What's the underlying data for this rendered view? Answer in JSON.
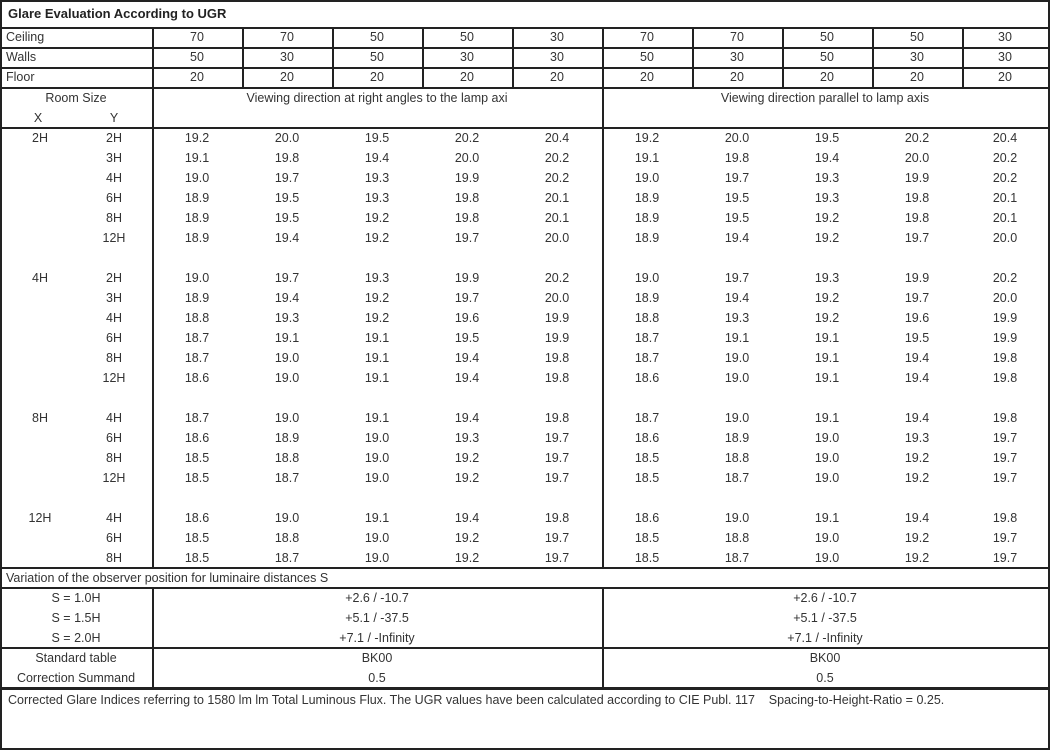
{
  "title": "Glare Evaluation According to UGR",
  "reflectances": [
    {
      "label": "Ceiling",
      "values": [
        "70",
        "70",
        "50",
        "50",
        "30",
        "70",
        "70",
        "50",
        "50",
        "30"
      ]
    },
    {
      "label": "Walls",
      "values": [
        "50",
        "30",
        "50",
        "30",
        "30",
        "50",
        "30",
        "50",
        "30",
        "30"
      ]
    },
    {
      "label": "Floor",
      "values": [
        "20",
        "20",
        "20",
        "20",
        "20",
        "20",
        "20",
        "20",
        "20",
        "20"
      ]
    }
  ],
  "room_size_label": "Room Size",
  "x_label": "X",
  "y_label": "Y",
  "direction_right_angles": "Viewing direction at right angles to the lamp axi",
  "direction_parallel": "Viewing direction parallel to lamp axis",
  "groups": [
    {
      "x": "2H",
      "rows": [
        {
          "y": "2H",
          "values": [
            "19.2",
            "20.0",
            "19.5",
            "20.2",
            "20.4",
            "19.2",
            "20.0",
            "19.5",
            "20.2",
            "20.4"
          ]
        },
        {
          "y": "3H",
          "values": [
            "19.1",
            "19.8",
            "19.4",
            "20.0",
            "20.2",
            "19.1",
            "19.8",
            "19.4",
            "20.0",
            "20.2"
          ]
        },
        {
          "y": "4H",
          "values": [
            "19.0",
            "19.7",
            "19.3",
            "19.9",
            "20.2",
            "19.0",
            "19.7",
            "19.3",
            "19.9",
            "20.2"
          ]
        },
        {
          "y": "6H",
          "values": [
            "18.9",
            "19.5",
            "19.3",
            "19.8",
            "20.1",
            "18.9",
            "19.5",
            "19.3",
            "19.8",
            "20.1"
          ]
        },
        {
          "y": "8H",
          "values": [
            "18.9",
            "19.5",
            "19.2",
            "19.8",
            "20.1",
            "18.9",
            "19.5",
            "19.2",
            "19.8",
            "20.1"
          ]
        },
        {
          "y": "12H",
          "values": [
            "18.9",
            "19.4",
            "19.2",
            "19.7",
            "20.0",
            "18.9",
            "19.4",
            "19.2",
            "19.7",
            "20.0"
          ]
        }
      ]
    },
    {
      "x": "4H",
      "rows": [
        {
          "y": "2H",
          "values": [
            "19.0",
            "19.7",
            "19.3",
            "19.9",
            "20.2",
            "19.0",
            "19.7",
            "19.3",
            "19.9",
            "20.2"
          ]
        },
        {
          "y": "3H",
          "values": [
            "18.9",
            "19.4",
            "19.2",
            "19.7",
            "20.0",
            "18.9",
            "19.4",
            "19.2",
            "19.7",
            "20.0"
          ]
        },
        {
          "y": "4H",
          "values": [
            "18.8",
            "19.3",
            "19.2",
            "19.6",
            "19.9",
            "18.8",
            "19.3",
            "19.2",
            "19.6",
            "19.9"
          ]
        },
        {
          "y": "6H",
          "values": [
            "18.7",
            "19.1",
            "19.1",
            "19.5",
            "19.9",
            "18.7",
            "19.1",
            "19.1",
            "19.5",
            "19.9"
          ]
        },
        {
          "y": "8H",
          "values": [
            "18.7",
            "19.0",
            "19.1",
            "19.4",
            "19.8",
            "18.7",
            "19.0",
            "19.1",
            "19.4",
            "19.8"
          ]
        },
        {
          "y": "12H",
          "values": [
            "18.6",
            "19.0",
            "19.1",
            "19.4",
            "19.8",
            "18.6",
            "19.0",
            "19.1",
            "19.4",
            "19.8"
          ]
        }
      ]
    },
    {
      "x": "8H",
      "rows": [
        {
          "y": "4H",
          "values": [
            "18.7",
            "19.0",
            "19.1",
            "19.4",
            "19.8",
            "18.7",
            "19.0",
            "19.1",
            "19.4",
            "19.8"
          ]
        },
        {
          "y": "6H",
          "values": [
            "18.6",
            "18.9",
            "19.0",
            "19.3",
            "19.7",
            "18.6",
            "18.9",
            "19.0",
            "19.3",
            "19.7"
          ]
        },
        {
          "y": "8H",
          "values": [
            "18.5",
            "18.8",
            "19.0",
            "19.2",
            "19.7",
            "18.5",
            "18.8",
            "19.0",
            "19.2",
            "19.7"
          ]
        },
        {
          "y": "12H",
          "values": [
            "18.5",
            "18.7",
            "19.0",
            "19.2",
            "19.7",
            "18.5",
            "18.7",
            "19.0",
            "19.2",
            "19.7"
          ]
        }
      ]
    },
    {
      "x": "12H",
      "rows": [
        {
          "y": "4H",
          "values": [
            "18.6",
            "19.0",
            "19.1",
            "19.4",
            "19.8",
            "18.6",
            "19.0",
            "19.1",
            "19.4",
            "19.8"
          ]
        },
        {
          "y": "6H",
          "values": [
            "18.5",
            "18.8",
            "19.0",
            "19.2",
            "19.7",
            "18.5",
            "18.8",
            "19.0",
            "19.2",
            "19.7"
          ]
        },
        {
          "y": "8H",
          "values": [
            "18.5",
            "18.7",
            "19.0",
            "19.2",
            "19.7",
            "18.5",
            "18.7",
            "19.0",
            "19.2",
            "19.7"
          ]
        }
      ]
    }
  ],
  "variation_label": "Variation of the observer position for luminaire distances S",
  "variations": [
    {
      "label": "S = 1.0H",
      "right_angles": "+2.6 / -10.7",
      "parallel": "+2.6 / -10.7"
    },
    {
      "label": "S = 1.5H",
      "right_angles": "+5.1 / -37.5",
      "parallel": "+5.1 / -37.5"
    },
    {
      "label": "S = 2.0H",
      "right_angles": "+7.1 / -Infinity",
      "parallel": "+7.1 / -Infinity"
    }
  ],
  "standard_table": {
    "label": "Standard table",
    "right_angles": "BK00",
    "parallel": "BK00"
  },
  "correction_summand": {
    "label": "Correction Summand",
    "right_angles": "0.5",
    "parallel": "0.5"
  },
  "footnote": "Corrected Glare Indices referring to 1580 lm lm Total Luminous Flux. The UGR values have been calculated according to CIE Publ. 117    Spacing-to-Height-Ratio = 0.25."
}
